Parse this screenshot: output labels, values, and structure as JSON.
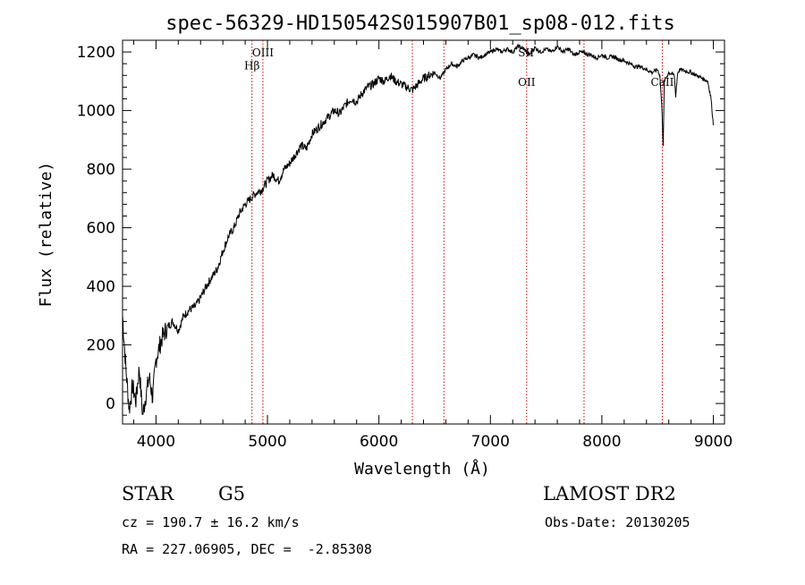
{
  "chart_data": {
    "type": "line",
    "title": "spec-56329-HD150542S015907B01_sp08-012.fits",
    "xlabel": "Wavelength (Å)",
    "ylabel": "Flux (relative)",
    "xlim": [
      3700,
      9100
    ],
    "ylim": [
      -70,
      1240
    ],
    "x_ticks": [
      4000,
      5000,
      6000,
      7000,
      8000,
      9000
    ],
    "y_ticks": [
      0,
      200,
      400,
      600,
      800,
      1000,
      1200
    ],
    "grid": false,
    "series": [
      {
        "x": [
          3700,
          3730,
          3760,
          3790,
          3820,
          3850,
          3880,
          3910,
          3940,
          3970,
          4000,
          4050,
          4100,
          4150,
          4200,
          4250,
          4300,
          4350,
          4400,
          4450,
          4500,
          4550,
          4600,
          4650,
          4700,
          4750,
          4800,
          4850,
          4900,
          4950,
          5000,
          5050,
          5100,
          5150,
          5200,
          5250,
          5300,
          5350,
          5400,
          5450,
          5500,
          5550,
          5600,
          5650,
          5700,
          5750,
          5800,
          5850,
          5900,
          5950,
          6000,
          6050,
          6100,
          6150,
          6200,
          6250,
          6300,
          6350,
          6400,
          6450,
          6500,
          6550,
          6600,
          6650,
          6700,
          6750,
          6800,
          6850,
          6900,
          6950,
          7000,
          7050,
          7100,
          7150,
          7200,
          7250,
          7300,
          7350,
          7400,
          7450,
          7500,
          7550,
          7600,
          7650,
          7700,
          7750,
          7800,
          7850,
          7900,
          7950,
          8000,
          8050,
          8100,
          8150,
          8200,
          8250,
          8300,
          8350,
          8400,
          8450,
          8500,
          8520,
          8540,
          8550,
          8560,
          8600,
          8650,
          8662,
          8680,
          8700,
          8750,
          8800,
          8850,
          8900,
          8950,
          8980,
          9000
        ],
        "y": [
          300,
          120,
          -20,
          60,
          10,
          120,
          -40,
          30,
          90,
          20,
          150,
          220,
          260,
          280,
          250,
          300,
          320,
          330,
          360,
          400,
          430,
          460,
          520,
          570,
          600,
          650,
          680,
          700,
          720,
          730,
          760,
          780,
          760,
          800,
          820,
          850,
          880,
          870,
          920,
          940,
          960,
          980,
          1000,
          990,
          1020,
          1040,
          1030,
          1060,
          1080,
          1090,
          1110,
          1100,
          1120,
          1100,
          1090,
          1080,
          1070,
          1090,
          1110,
          1120,
          1130,
          1110,
          1140,
          1160,
          1150,
          1170,
          1180,
          1190,
          1180,
          1190,
          1200,
          1210,
          1200,
          1210,
          1200,
          1220,
          1210,
          1190,
          1215,
          1200,
          1210,
          1200,
          1220,
          1200,
          1210,
          1190,
          1200,
          1195,
          1190,
          1180,
          1190,
          1180,
          1185,
          1175,
          1170,
          1160,
          1150,
          1150,
          1140,
          1130,
          1140,
          1120,
          1000,
          880,
          1100,
          1130,
          1120,
          1050,
          1130,
          1140,
          1135,
          1130,
          1120,
          1110,
          1100,
          1040,
          950
        ]
      }
    ],
    "line_markers": [
      {
        "name": "Hβ",
        "x": 4861,
        "label_y": 1140
      },
      {
        "name": "OIII",
        "x": 4959,
        "label_y": 1185
      },
      {
        "name": "",
        "x": 6300
      },
      {
        "name": "",
        "x": 6583
      },
      {
        "name": "OII",
        "x": 7325,
        "label_y": 1085
      },
      {
        "name": "SII",
        "x": 7320,
        "marker_x": 7840,
        "label_y": 1185
      },
      {
        "name": "CaII",
        "x": 8542,
        "label_y": 1085
      }
    ],
    "marker_color": "#cc0000"
  },
  "info": {
    "object_class": "STAR",
    "subclass": "G5",
    "survey": "LAMOST DR2",
    "redshift_line": "cz = 190.7 ± 16.2 km/s",
    "obs_date": "Obs-Date: 20130205",
    "coords": "RA = 227.06905, DEC =  -2.85308"
  }
}
